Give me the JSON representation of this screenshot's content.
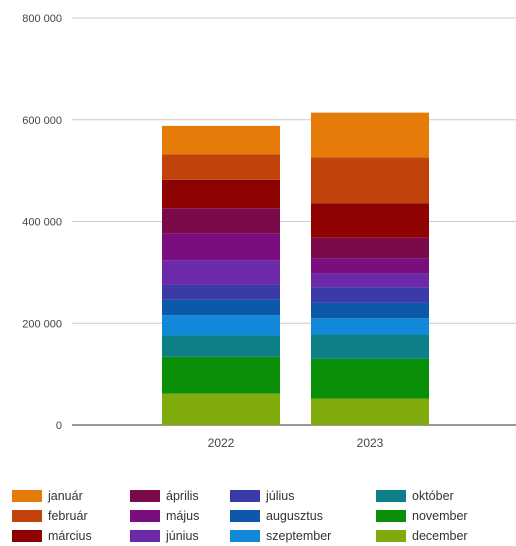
{
  "chart_data": {
    "type": "bar",
    "stacked": true,
    "categories": [
      "2022",
      "2023"
    ],
    "ylim": [
      0,
      800000
    ],
    "yticks": [
      0,
      200000,
      400000,
      600000,
      800000
    ],
    "ytick_labels": [
      "0",
      "200 000",
      "400 000",
      "600 000",
      "800 000"
    ],
    "grid": true,
    "legend_position": "bottom",
    "series": [
      {
        "name": "december",
        "color": "#7fab0c",
        "values": [
          62000,
          52000
        ]
      },
      {
        "name": "november",
        "color": "#0a9008",
        "values": [
          72000,
          78000
        ]
      },
      {
        "name": "október",
        "color": "#0d7f86",
        "values": [
          42000,
          48000
        ]
      },
      {
        "name": "szeptember",
        "color": "#1188d8",
        "values": [
          40000,
          32000
        ]
      },
      {
        "name": "augusztus",
        "color": "#0b59a8",
        "values": [
          30000,
          30000
        ]
      },
      {
        "name": "július",
        "color": "#3a3aa8",
        "values": [
          30000,
          30000
        ]
      },
      {
        "name": "június",
        "color": "#6c2aa8",
        "values": [
          48000,
          28000
        ]
      },
      {
        "name": "május",
        "color": "#7a0e7e",
        "values": [
          52000,
          30000
        ]
      },
      {
        "name": "április",
        "color": "#7a0a4a",
        "values": [
          50000,
          40000
        ]
      },
      {
        "name": "március",
        "color": "#8e0202",
        "values": [
          56000,
          68000
        ]
      },
      {
        "name": "február",
        "color": "#c2420c",
        "values": [
          50000,
          90000
        ]
      },
      {
        "name": "január",
        "color": "#e57c0a",
        "values": [
          56000,
          88000
        ]
      }
    ]
  },
  "legend": {
    "columns": [
      [
        "január",
        "február",
        "március"
      ],
      [
        "április",
        "május",
        "június"
      ],
      [
        "július",
        "augusztus",
        "szeptember"
      ],
      [
        "október",
        "november",
        "december"
      ]
    ]
  }
}
